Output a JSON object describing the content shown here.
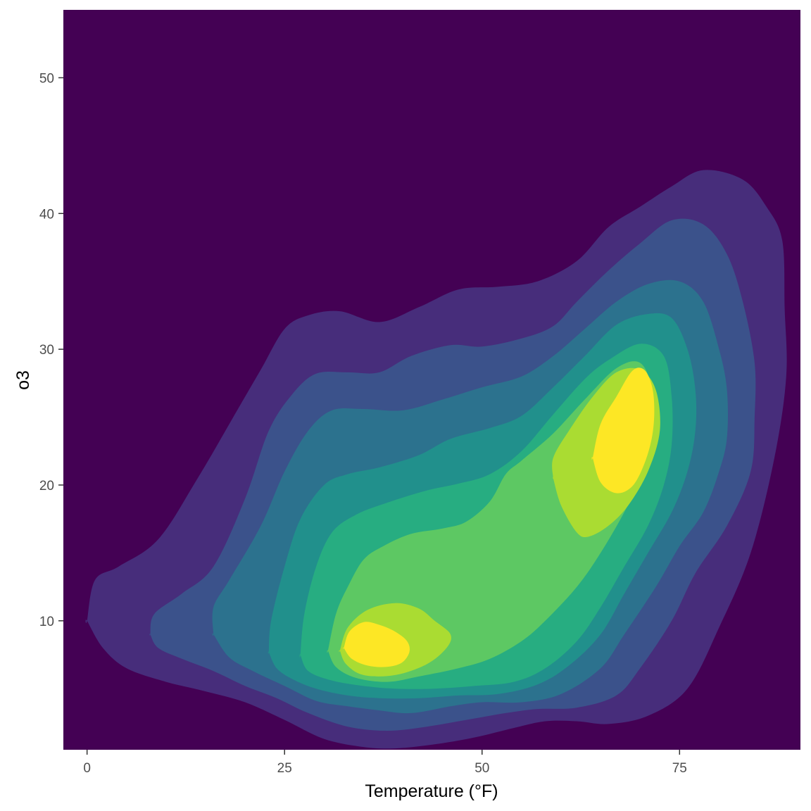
{
  "chart_data": {
    "type": "heatmap",
    "subtype": "filled-density-contour",
    "title": "",
    "xlabel": "Temperature (°F)",
    "ylabel": "o3",
    "xlim": [
      -3,
      90.3
    ],
    "ylim": [
      0.5,
      55
    ],
    "x_ticks": [
      0,
      25,
      50,
      75
    ],
    "y_ticks": [
      10,
      20,
      30,
      40,
      50
    ],
    "grid": false,
    "legend": "none",
    "background_color": "#440154",
    "band_colors": [
      "#472D7B",
      "#3B528B",
      "#2C728E",
      "#21908C",
      "#27AD81",
      "#5DC863",
      "#AADC32",
      "#FDE725"
    ],
    "bands": [
      {
        "level": 1,
        "color": "#472D7B",
        "shapes": [
          [
            [
              0,
              10
            ],
            [
              1,
              13
            ],
            [
              4,
              14
            ],
            [
              9,
              16
            ],
            [
              14,
              20.5
            ],
            [
              19,
              25.5
            ],
            [
              22,
              28.5
            ],
            [
              25,
              31.5
            ],
            [
              28,
              32.5
            ],
            [
              32,
              32.8
            ],
            [
              37,
              32
            ],
            [
              42,
              33.1
            ],
            [
              47,
              34.4
            ],
            [
              52,
              34.6
            ],
            [
              57,
              35
            ],
            [
              62,
              36.5
            ],
            [
              66,
              39
            ],
            [
              70,
              40.5
            ],
            [
              74,
              42
            ],
            [
              78,
              43.2
            ],
            [
              83,
              42.5
            ],
            [
              86,
              40.5
            ],
            [
              88,
              38
            ],
            [
              88.3,
              33
            ],
            [
              88.5,
              28
            ],
            [
              87,
              22
            ],
            [
              84,
              15
            ],
            [
              80,
              9.5
            ],
            [
              76,
              5
            ],
            [
              71,
              3
            ],
            [
              66,
              2.4
            ],
            [
              62,
              2.6
            ],
            [
              58,
              2.6
            ],
            [
              54,
              2.1
            ],
            [
              49,
              1.4
            ],
            [
              44,
              0.9
            ],
            [
              39,
              0.6
            ],
            [
              35,
              0.7
            ],
            [
              30,
              1.3
            ],
            [
              25,
              2.7
            ],
            [
              20,
              4
            ],
            [
              15,
              4.8
            ],
            [
              10,
              5.5
            ],
            [
              5,
              6.5
            ],
            [
              2,
              8
            ],
            [
              0,
              10
            ]
          ]
        ]
      },
      {
        "level": 2,
        "color": "#3B528B",
        "shapes": [
          [
            [
              8,
              9
            ],
            [
              8.5,
              10.5
            ],
            [
              12,
              12
            ],
            [
              16,
              14
            ],
            [
              20,
              19
            ],
            [
              23,
              24
            ],
            [
              26,
              26.7
            ],
            [
              29,
              28.2
            ],
            [
              33,
              28.3
            ],
            [
              37,
              28.3
            ],
            [
              41,
              29.5
            ],
            [
              46,
              30.3
            ],
            [
              50,
              30.2
            ],
            [
              55,
              30.8
            ],
            [
              59,
              31.7
            ],
            [
              62,
              33.5
            ],
            [
              66,
              35.8
            ],
            [
              70,
              37.8
            ],
            [
              74,
              39.5
            ],
            [
              78,
              39.2
            ],
            [
              81,
              37
            ],
            [
              83,
              33.5
            ],
            [
              84.5,
              29
            ],
            [
              84.5,
              25
            ],
            [
              84,
              21
            ],
            [
              81,
              17
            ],
            [
              77,
              13.5
            ],
            [
              74,
              10
            ],
            [
              70,
              6.5
            ],
            [
              67,
              4.5
            ],
            [
              62,
              3.6
            ],
            [
              57,
              3.5
            ],
            [
              53,
              3.2
            ],
            [
              48,
              2.7
            ],
            [
              43,
              2.2
            ],
            [
              38,
              1.9
            ],
            [
              33,
              2.2
            ],
            [
              28,
              3.2
            ],
            [
              24,
              4.3
            ],
            [
              20,
              5.2
            ],
            [
              16,
              6.3
            ],
            [
              12,
              7.2
            ],
            [
              9,
              8
            ],
            [
              8,
              9
            ]
          ]
        ]
      },
      {
        "level": 3,
        "color": "#2C728E",
        "shapes": [
          [
            [
              16,
              9
            ],
            [
              16,
              11
            ],
            [
              18,
              13
            ],
            [
              22,
              17
            ],
            [
              25,
              21
            ],
            [
              28,
              24
            ],
            [
              31,
              25.5
            ],
            [
              35,
              25.6
            ],
            [
              40,
              25.5
            ],
            [
              45,
              26.3
            ],
            [
              50,
              27.2
            ],
            [
              55,
              28
            ],
            [
              59,
              29.5
            ],
            [
              63,
              31.5
            ],
            [
              67,
              33.5
            ],
            [
              71,
              34.8
            ],
            [
              75,
              35
            ],
            [
              78,
              33.5
            ],
            [
              80,
              30
            ],
            [
              81,
              27
            ],
            [
              81,
              23.5
            ],
            [
              80,
              21
            ],
            [
              78,
              18
            ],
            [
              75,
              15.5
            ],
            [
              72,
              12.5
            ],
            [
              68,
              9
            ],
            [
              65,
              6.5
            ],
            [
              60,
              4.6
            ],
            [
              55,
              4
            ],
            [
              50,
              4
            ],
            [
              46,
              3.7
            ],
            [
              41,
              3.2
            ],
            [
              37,
              3.4
            ],
            [
              33,
              3.7
            ],
            [
              29,
              4.1
            ],
            [
              25,
              5.2
            ],
            [
              21,
              6.3
            ],
            [
              18,
              7.3
            ],
            [
              16,
              9
            ]
          ]
        ]
      },
      {
        "level": 4,
        "color": "#21908C",
        "shapes": [
          [
            [
              23,
              7.7
            ],
            [
              23.3,
              10
            ],
            [
              25,
              14
            ],
            [
              27,
              17.5
            ],
            [
              30,
              20
            ],
            [
              33,
              20.8
            ],
            [
              37,
              21.3
            ],
            [
              42,
              22.2
            ],
            [
              46,
              23.4
            ],
            [
              51,
              24.2
            ],
            [
              55,
              25.1
            ],
            [
              59,
              27.2
            ],
            [
              63,
              29.5
            ],
            [
              67,
              31.8
            ],
            [
              71,
              32.6
            ],
            [
              74,
              32.3
            ],
            [
              76,
              30
            ],
            [
              77,
              27
            ],
            [
              77,
              24
            ],
            [
              76,
              21
            ],
            [
              74,
              18
            ],
            [
              71,
              15
            ],
            [
              68,
              12
            ],
            [
              65,
              9
            ],
            [
              61,
              6.7
            ],
            [
              57,
              5.3
            ],
            [
              52,
              4.6
            ],
            [
              47,
              4.5
            ],
            [
              42,
              4.3
            ],
            [
              37,
              4.3
            ],
            [
              33,
              4.5
            ],
            [
              29,
              5
            ],
            [
              26,
              5.7
            ],
            [
              24,
              6.5
            ],
            [
              23,
              7.7
            ]
          ]
        ]
      },
      {
        "level": 5,
        "color": "#27AD81",
        "shapes": [
          [
            [
              27,
              7.5
            ],
            [
              27.5,
              10.5
            ],
            [
              29,
              14
            ],
            [
              31,
              16.5
            ],
            [
              34,
              17.8
            ],
            [
              38,
              18.7
            ],
            [
              43,
              19.6
            ],
            [
              47,
              20.1
            ],
            [
              51,
              20.8
            ],
            [
              55,
              22.5
            ],
            [
              59,
              25.2
            ],
            [
              63,
              27.8
            ],
            [
              66,
              29.2
            ],
            [
              70,
              30.4
            ],
            [
              73,
              29.5
            ],
            [
              74,
              26.5
            ],
            [
              74,
              23
            ],
            [
              73,
              20
            ],
            [
              71,
              17
            ],
            [
              68,
              14
            ],
            [
              65,
              11
            ],
            [
              62,
              8.5
            ],
            [
              58,
              6.5
            ],
            [
              54,
              5.5
            ],
            [
              49,
              5.2
            ],
            [
              44,
              5
            ],
            [
              39,
              5
            ],
            [
              35,
              5.2
            ],
            [
              31,
              5.6
            ],
            [
              28,
              6.3
            ],
            [
              27,
              7.5
            ]
          ]
        ]
      },
      {
        "level": 6,
        "color": "#5DC863",
        "shapes": [
          [
            [
              30.5,
              7.8
            ],
            [
              31.5,
              10.5
            ],
            [
              33,
              12.5
            ],
            [
              35,
              14.5
            ],
            [
              37.5,
              15.5
            ],
            [
              41,
              16.4
            ],
            [
              45,
              16.8
            ],
            [
              48,
              17.3
            ],
            [
              51,
              18.8
            ],
            [
              53,
              20.8
            ],
            [
              55,
              21.8
            ],
            [
              59,
              23.8
            ],
            [
              63,
              26.3
            ],
            [
              67,
              28.6
            ],
            [
              70,
              29
            ],
            [
              71.5,
              27
            ],
            [
              71.5,
              24
            ],
            [
              70.5,
              21
            ],
            [
              68,
              18
            ],
            [
              65,
              15
            ],
            [
              62,
              12.5
            ],
            [
              58,
              10
            ],
            [
              55,
              8.5
            ],
            [
              51,
              7.2
            ],
            [
              47,
              6.5
            ],
            [
              42,
              5.9
            ],
            [
              38,
              5.5
            ],
            [
              34,
              5.8
            ],
            [
              31.5,
              6.6
            ],
            [
              30.5,
              7.8
            ]
          ]
        ]
      },
      {
        "level": 7,
        "color": "#AADC32",
        "shapes": [
          [
            [
              32,
              7.8
            ],
            [
              33,
              9.5
            ],
            [
              35.5,
              10.8
            ],
            [
              39,
              11.3
            ],
            [
              42,
              10.9
            ],
            [
              44,
              10
            ],
            [
              46,
              9
            ],
            [
              45.5,
              8
            ],
            [
              43,
              6.8
            ],
            [
              39,
              6
            ],
            [
              35,
              6
            ],
            [
              32.8,
              6.8
            ],
            [
              32,
              7.8
            ]
          ],
          [
            [
              59,
              20.5
            ],
            [
              60,
              18.5
            ],
            [
              62,
              16.5
            ],
            [
              63.5,
              16.2
            ],
            [
              66,
              17
            ],
            [
              68.5,
              18.5
            ],
            [
              71,
              21
            ],
            [
              72.5,
              24
            ],
            [
              72,
              27
            ],
            [
              70,
              28.5
            ],
            [
              67,
              28.3
            ],
            [
              64,
              26.5
            ],
            [
              61,
              24
            ],
            [
              59,
              22
            ],
            [
              59,
              20.5
            ]
          ]
        ]
      },
      {
        "level": 8,
        "color": "#FDE725",
        "shapes": [
          [
            [
              32.5,
              8
            ],
            [
              33.2,
              9.2
            ],
            [
              35,
              9.9
            ],
            [
              37,
              9.7
            ],
            [
              39,
              9.2
            ],
            [
              40.5,
              8.5
            ],
            [
              40.8,
              7.7
            ],
            [
              39.8,
              6.9
            ],
            [
              37.8,
              6.6
            ],
            [
              35.5,
              6.7
            ],
            [
              33.5,
              7.2
            ],
            [
              32.5,
              8
            ]
          ],
          [
            [
              64,
              22
            ],
            [
              65,
              20.2
            ],
            [
              67,
              19.4
            ],
            [
              69,
              19.9
            ],
            [
              70.5,
              21.5
            ],
            [
              71.5,
              23.5
            ],
            [
              71.8,
              25.5
            ],
            [
              71.5,
              27.3
            ],
            [
              70.5,
              28.5
            ],
            [
              69,
              28.4
            ],
            [
              67,
              26.5
            ],
            [
              65,
              24.5
            ],
            [
              64,
              22
            ]
          ]
        ]
      }
    ]
  }
}
